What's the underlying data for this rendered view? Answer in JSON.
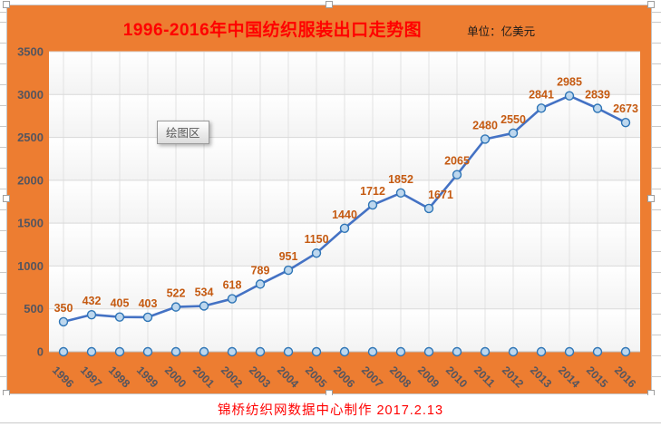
{
  "header": {
    "title": "1996-2016年中国纺织服装出口走势图",
    "unit_label": "单位：亿美元"
  },
  "tooltip": {
    "label": "绘图区"
  },
  "footer": {
    "credit": "锦桥纺织网数据中心制作  2017.2.13"
  },
  "chart_data": {
    "type": "line",
    "title": "1996-2016年中国纺织服装出口走势图",
    "unit": "亿美元",
    "categories": [
      "1996",
      "1997",
      "1998",
      "1999",
      "2000",
      "2001",
      "2002",
      "2003",
      "2004",
      "2005",
      "2006",
      "2007",
      "2008",
      "2009",
      "2010",
      "2011",
      "2012",
      "2013",
      "2014",
      "2015",
      "2016"
    ],
    "values": [
      350,
      432,
      405,
      403,
      522,
      534,
      618,
      789,
      951,
      1150,
      1440,
      1712,
      1852,
      1671,
      2065,
      2480,
      2550,
      2841,
      2985,
      2839,
      2673
    ],
    "label_dx": [
      0,
      0,
      0,
      0,
      0,
      0,
      0,
      0,
      0,
      0,
      0,
      0,
      0,
      13,
      0,
      0,
      0,
      0,
      0,
      0,
      0
    ],
    "zero_marker_row": true,
    "xlabel": "",
    "ylabel": "",
    "ylim": [
      0,
      3500
    ],
    "ytick_step": 500,
    "grid": {
      "horizontal": true,
      "vertical": true
    },
    "legend": "none",
    "x_label_rotation_deg": 45,
    "colors": {
      "background": "#ED7D31",
      "line": "#4472C4",
      "marker_fill": "#BDD7EE",
      "marker_stroke": "#2E75B6",
      "data_label": "#C55A11",
      "axis_label": "#55555E",
      "gridline": "#D9D9D9",
      "vertical_gridline": "#E2E2E2",
      "axis_line": "#BFBFBF",
      "plot_band_light": "#FFFFFF",
      "plot_band_dark": "#F3F3F3",
      "title_color": "#FF0000",
      "footer_color": "#FF0000"
    }
  }
}
